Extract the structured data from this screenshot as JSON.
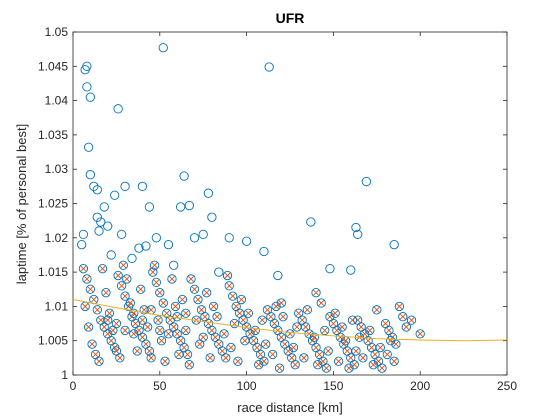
{
  "chart_data": {
    "type": "scatter",
    "title": "UFR",
    "xlabel": "race distance [km]",
    "ylabel": "laptime [% of personal best]",
    "xlim": [
      0,
      250
    ],
    "ylim": [
      1,
      1.05
    ],
    "xticks": [
      "0",
      "50",
      "100",
      "150",
      "200",
      "250"
    ],
    "xtick_values": [
      0,
      50,
      100,
      150,
      200,
      250
    ],
    "yticks": [
      "1",
      "1.005",
      "1.01",
      "1.015",
      "1.02",
      "1.025",
      "1.03",
      "1.035",
      "1.04",
      "1.045",
      "1.05"
    ],
    "ytick_values": [
      1,
      1.005,
      1.01,
      1.015,
      1.02,
      1.025,
      1.03,
      1.035,
      1.04,
      1.045,
      1.05
    ],
    "grid": false,
    "colors": {
      "circles": "#0072BD",
      "crosses": "#D95319",
      "fit": "#EDB120",
      "axes": "#262626"
    },
    "series": [
      {
        "marker": "circle",
        "points": [
          [
            7,
            1.0445
          ],
          [
            8,
            1.045
          ],
          [
            8,
            1.042
          ],
          [
            10,
            1.0405
          ],
          [
            52,
            1.0477
          ],
          [
            113,
            1.0449
          ],
          [
            26,
            1.0388
          ],
          [
            9,
            1.0332
          ],
          [
            10,
            1.0292
          ],
          [
            12,
            1.0275
          ],
          [
            14,
            1.027
          ],
          [
            30,
            1.0275
          ],
          [
            40,
            1.0275
          ],
          [
            64,
            1.029
          ],
          [
            67,
            1.0247
          ],
          [
            78,
            1.0265
          ],
          [
            62,
            1.0245
          ],
          [
            44,
            1.0245
          ],
          [
            18,
            1.0245
          ],
          [
            24,
            1.0262
          ],
          [
            14,
            1.023
          ],
          [
            16,
            1.0223
          ],
          [
            20,
            1.0217
          ],
          [
            6,
            1.0205
          ],
          [
            80,
            1.023
          ],
          [
            137,
            1.0223
          ],
          [
            169,
            1.0282
          ],
          [
            163,
            1.0215
          ],
          [
            185,
            1.019
          ],
          [
            164,
            1.0205
          ],
          [
            148,
            1.0155
          ],
          [
            160,
            1.0153
          ],
          [
            5,
            1.019
          ],
          [
            15,
            1.021
          ],
          [
            28,
            1.0205
          ],
          [
            38,
            1.0185
          ],
          [
            42,
            1.0188
          ],
          [
            48,
            1.02
          ],
          [
            55,
            1.019
          ],
          [
            70,
            1.02
          ],
          [
            75,
            1.0205
          ],
          [
            90,
            1.02
          ],
          [
            100,
            1.0195
          ],
          [
            110,
            1.018
          ],
          [
            22,
            1.0175
          ],
          [
            34,
            1.017
          ],
          [
            58,
            1.016
          ],
          [
            84,
            1.015
          ],
          [
            118,
            1.0145
          ]
        ]
      },
      {
        "marker": "circle-x",
        "points": [
          [
            6,
            1.0155
          ],
          [
            8,
            1.014
          ],
          [
            10,
            1.0125
          ],
          [
            12,
            1.011
          ],
          [
            14,
            1.0095
          ],
          [
            16,
            1.008
          ],
          [
            18,
            1.007
          ],
          [
            20,
            1.006
          ],
          [
            22,
            1.005
          ],
          [
            24,
            1.004
          ],
          [
            26,
            1.0145
          ],
          [
            28,
            1.013
          ],
          [
            30,
            1.0115
          ],
          [
            32,
            1.01
          ],
          [
            34,
            1.0085
          ],
          [
            36,
            1.0075
          ],
          [
            38,
            1.0065
          ],
          [
            40,
            1.0055
          ],
          [
            42,
            1.0045
          ],
          [
            44,
            1.0035
          ],
          [
            46,
            1.015
          ],
          [
            48,
            1.0135
          ],
          [
            50,
            1.012
          ],
          [
            52,
            1.0105
          ],
          [
            54,
            1.009
          ],
          [
            56,
            1.008
          ],
          [
            58,
            1.007
          ],
          [
            60,
            1.006
          ],
          [
            62,
            1.005
          ],
          [
            64,
            1.004
          ],
          [
            66,
            1.003
          ],
          [
            68,
            1.014
          ],
          [
            70,
            1.0125
          ],
          [
            72,
            1.011
          ],
          [
            74,
            1.0095
          ],
          [
            76,
            1.0085
          ],
          [
            78,
            1.0075
          ],
          [
            80,
            1.0065
          ],
          [
            82,
            1.0055
          ],
          [
            84,
            1.0045
          ],
          [
            86,
            1.0035
          ],
          [
            88,
            1.0025
          ],
          [
            90,
            1.013
          ],
          [
            92,
            1.0115
          ],
          [
            94,
            1.01
          ],
          [
            96,
            1.009
          ],
          [
            98,
            1.008
          ],
          [
            100,
            1.007
          ],
          [
            102,
            1.006
          ],
          [
            104,
            1.005
          ],
          [
            106,
            1.004
          ],
          [
            108,
            1.003
          ],
          [
            110,
            1.002
          ],
          [
            112,
            1.0095
          ],
          [
            114,
            1.0085
          ],
          [
            116,
            1.0075
          ],
          [
            118,
            1.0065
          ],
          [
            120,
            1.0055
          ],
          [
            122,
            1.0045
          ],
          [
            124,
            1.0035
          ],
          [
            126,
            1.0025
          ],
          [
            128,
            1.0015
          ],
          [
            130,
            1.009
          ],
          [
            132,
            1.008
          ],
          [
            134,
            1.007
          ],
          [
            136,
            1.006
          ],
          [
            138,
            1.005
          ],
          [
            140,
            1.004
          ],
          [
            142,
            1.003
          ],
          [
            144,
            1.002
          ],
          [
            146,
            1.001
          ],
          [
            148,
            1.0085
          ],
          [
            150,
            1.0075
          ],
          [
            152,
            1.0065
          ],
          [
            154,
            1.0055
          ],
          [
            156,
            1.0045
          ],
          [
            158,
            1.0035
          ],
          [
            160,
            1.0025
          ],
          [
            162,
            1.0015
          ],
          [
            164,
            1.008
          ],
          [
            166,
            1.007
          ],
          [
            168,
            1.006
          ],
          [
            170,
            1.005
          ],
          [
            172,
            1.004
          ],
          [
            174,
            1.003
          ],
          [
            176,
            1.002
          ],
          [
            178,
            1.001
          ],
          [
            180,
            1.0075
          ],
          [
            182,
            1.0065
          ],
          [
            184,
            1.0055
          ],
          [
            186,
            1.0045
          ],
          [
            188,
            1.01
          ],
          [
            190,
            1.0085
          ],
          [
            192,
            1.007
          ],
          [
            200,
            1.006
          ],
          [
            175,
            1.0095
          ],
          [
            140,
            1.012
          ],
          [
            120,
            1.0105
          ],
          [
            7,
            1.01
          ],
          [
            9,
            1.007
          ],
          [
            11,
            1.0045
          ],
          [
            13,
            1.003
          ],
          [
            15,
            1.002
          ],
          [
            17,
            1.0155
          ],
          [
            19,
            1.012
          ],
          [
            21,
            1.009
          ],
          [
            23,
            1.0065
          ],
          [
            25,
            1.0035
          ],
          [
            27,
            1.0025
          ],
          [
            29,
            1.016
          ],
          [
            31,
            1.014
          ],
          [
            33,
            1.0105
          ],
          [
            35,
            1.006
          ],
          [
            37,
            1.0035
          ],
          [
            39,
            1.0125
          ],
          [
            41,
            1.0095
          ],
          [
            43,
            1.007
          ],
          [
            45,
            1.0025
          ],
          [
            47,
            1.016
          ],
          [
            49,
            1.008
          ],
          [
            51,
            1.005
          ],
          [
            53,
            1.002
          ],
          [
            57,
            1.014
          ],
          [
            59,
            1.01
          ],
          [
            61,
            1.003
          ],
          [
            63,
            1.011
          ],
          [
            65,
            1.0065
          ],
          [
            67,
            1.0015
          ],
          [
            71,
            1.008
          ],
          [
            73,
            1.0045
          ],
          [
            77,
            1.012
          ],
          [
            79,
            1.0025
          ],
          [
            81,
            1.01
          ],
          [
            83,
            1.0085
          ],
          [
            87,
            1.006
          ],
          [
            89,
            1.0145
          ],
          [
            91,
            1.004
          ],
          [
            93,
            1.0075
          ],
          [
            95,
            1.002
          ],
          [
            97,
            1.011
          ],
          [
            99,
            1.005
          ],
          [
            101,
            1.009
          ],
          [
            105,
            1.0065
          ],
          [
            107,
            1.0015
          ],
          [
            109,
            1.008
          ],
          [
            111,
            1.0045
          ],
          [
            115,
            1.003
          ],
          [
            117,
            1.01
          ],
          [
            119,
            1.001
          ],
          [
            121,
            1.0085
          ],
          [
            125,
            1.006
          ],
          [
            127,
            1.004
          ],
          [
            129,
            1.007
          ],
          [
            133,
            1.0025
          ],
          [
            135,
            1.0095
          ],
          [
            139,
            1.0055
          ],
          [
            141,
            1.0015
          ],
          [
            143,
            1.0105
          ],
          [
            145,
            1.0065
          ],
          [
            147,
            1.0035
          ],
          [
            151,
            1.009
          ],
          [
            153,
            1.002
          ],
          [
            155,
            1.007
          ],
          [
            157,
            1.005
          ],
          [
            159,
            1.001
          ],
          [
            161,
            1.008
          ],
          [
            163,
            1.0035
          ],
          [
            165,
            1.0055
          ],
          [
            167,
            1.0025
          ],
          [
            171,
            1.0065
          ],
          [
            173,
            1.0015
          ],
          [
            177,
            1.004
          ],
          [
            181,
            1.003
          ],
          [
            183,
            1.005
          ],
          [
            185,
            1.002
          ],
          [
            195,
            1.008
          ],
          [
            40,
            1.008
          ],
          [
            30,
            1.0065
          ],
          [
            20,
            1.008
          ],
          [
            60,
            1.0085
          ],
          [
            50,
            1.0065
          ],
          [
            35,
            1.009
          ],
          [
            25,
            1.0075
          ],
          [
            45,
            1.0095
          ],
          [
            55,
            1.006
          ],
          [
            65,
            1.009
          ],
          [
            75,
            1.0055
          ]
        ]
      }
    ],
    "fit_line": {
      "x": [
        0,
        25,
        50,
        75,
        100,
        125,
        150,
        175,
        200,
        225,
        250
      ],
      "y": [
        1.011,
        1.0098,
        1.0087,
        1.0078,
        1.0069,
        1.0062,
        1.0057,
        1.0053,
        1.0051,
        1.005,
        1.0051
      ]
    }
  }
}
